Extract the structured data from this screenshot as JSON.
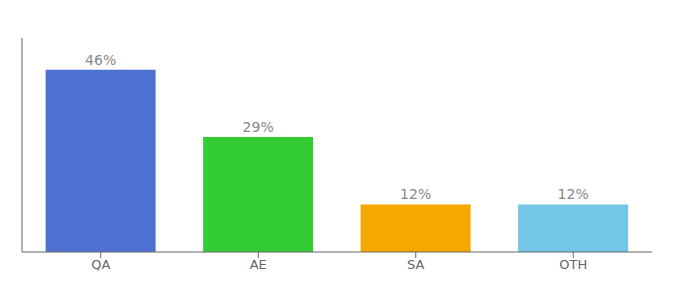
{
  "chart_data": {
    "type": "bar",
    "categories": [
      "QA",
      "AE",
      "SA",
      "OTH"
    ],
    "values": [
      46,
      29,
      12,
      12
    ],
    "value_labels": [
      "46%",
      "29%",
      "12%",
      "12%"
    ],
    "colors": [
      "#4d72d1",
      "#33cc33",
      "#f5a800",
      "#74c6e8"
    ],
    "ylim": [
      0,
      54
    ],
    "data_labels": true,
    "tick_labels": "x"
  }
}
